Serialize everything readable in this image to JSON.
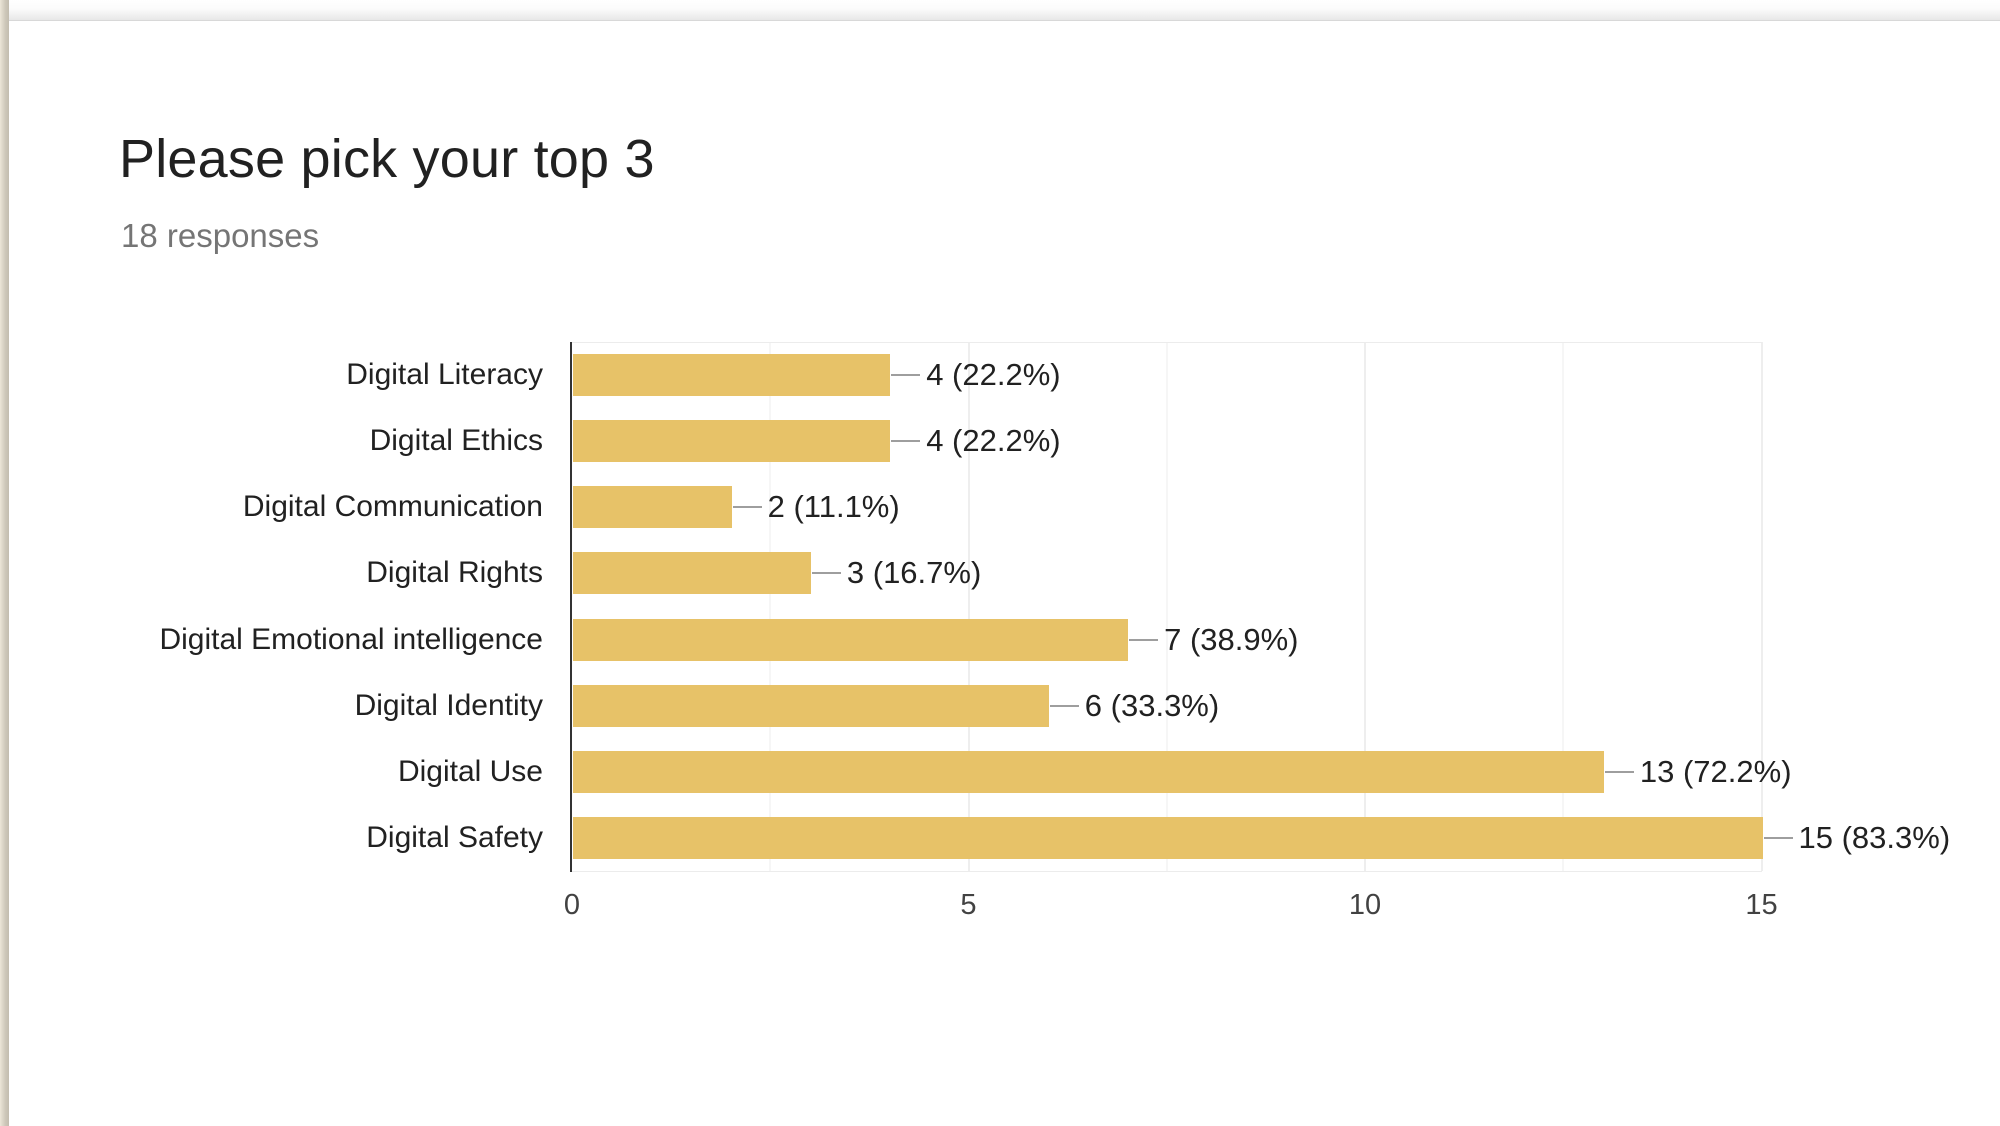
{
  "header": {
    "title": "Please pick your top 3",
    "subtitle": "18 responses"
  },
  "chart_data": {
    "type": "bar",
    "orientation": "horizontal",
    "title": "Please pick your top 3",
    "subtitle": "18 responses",
    "categories": [
      "Digital Literacy",
      "Digital Ethics",
      "Digital Communication",
      "Digital Rights",
      "Digital Emotional intelligence",
      "Digital Identity",
      "Digital Use",
      "Digital Safety"
    ],
    "values": [
      4,
      4,
      2,
      3,
      7,
      6,
      13,
      15
    ],
    "value_labels": [
      "4 (22.2%)",
      "4 (22.2%)",
      "2 (11.1%)",
      "3 (16.7%)",
      "7 (38.9%)",
      "6 (33.3%)",
      "13 (72.2%)",
      "15 (83.3%)"
    ],
    "x_tick_labels": [
      "0",
      "5",
      "10",
      "15"
    ],
    "x_tick_values": [
      0,
      5,
      10,
      15
    ],
    "minor_grid_values": [
      2.5,
      7.5,
      12.5
    ],
    "xlim": [
      0,
      15
    ],
    "grid": true,
    "legend": false,
    "colors": {
      "bar": "#e7c268",
      "connector": "#9e9e9e",
      "axis": "#333333",
      "major_grid": "#eeeeee",
      "minor_grid": "#f6f6f6",
      "label_text": "#212121",
      "tick_text": "#424242",
      "title_text": "#212121",
      "subtitle_text": "#757575"
    }
  }
}
